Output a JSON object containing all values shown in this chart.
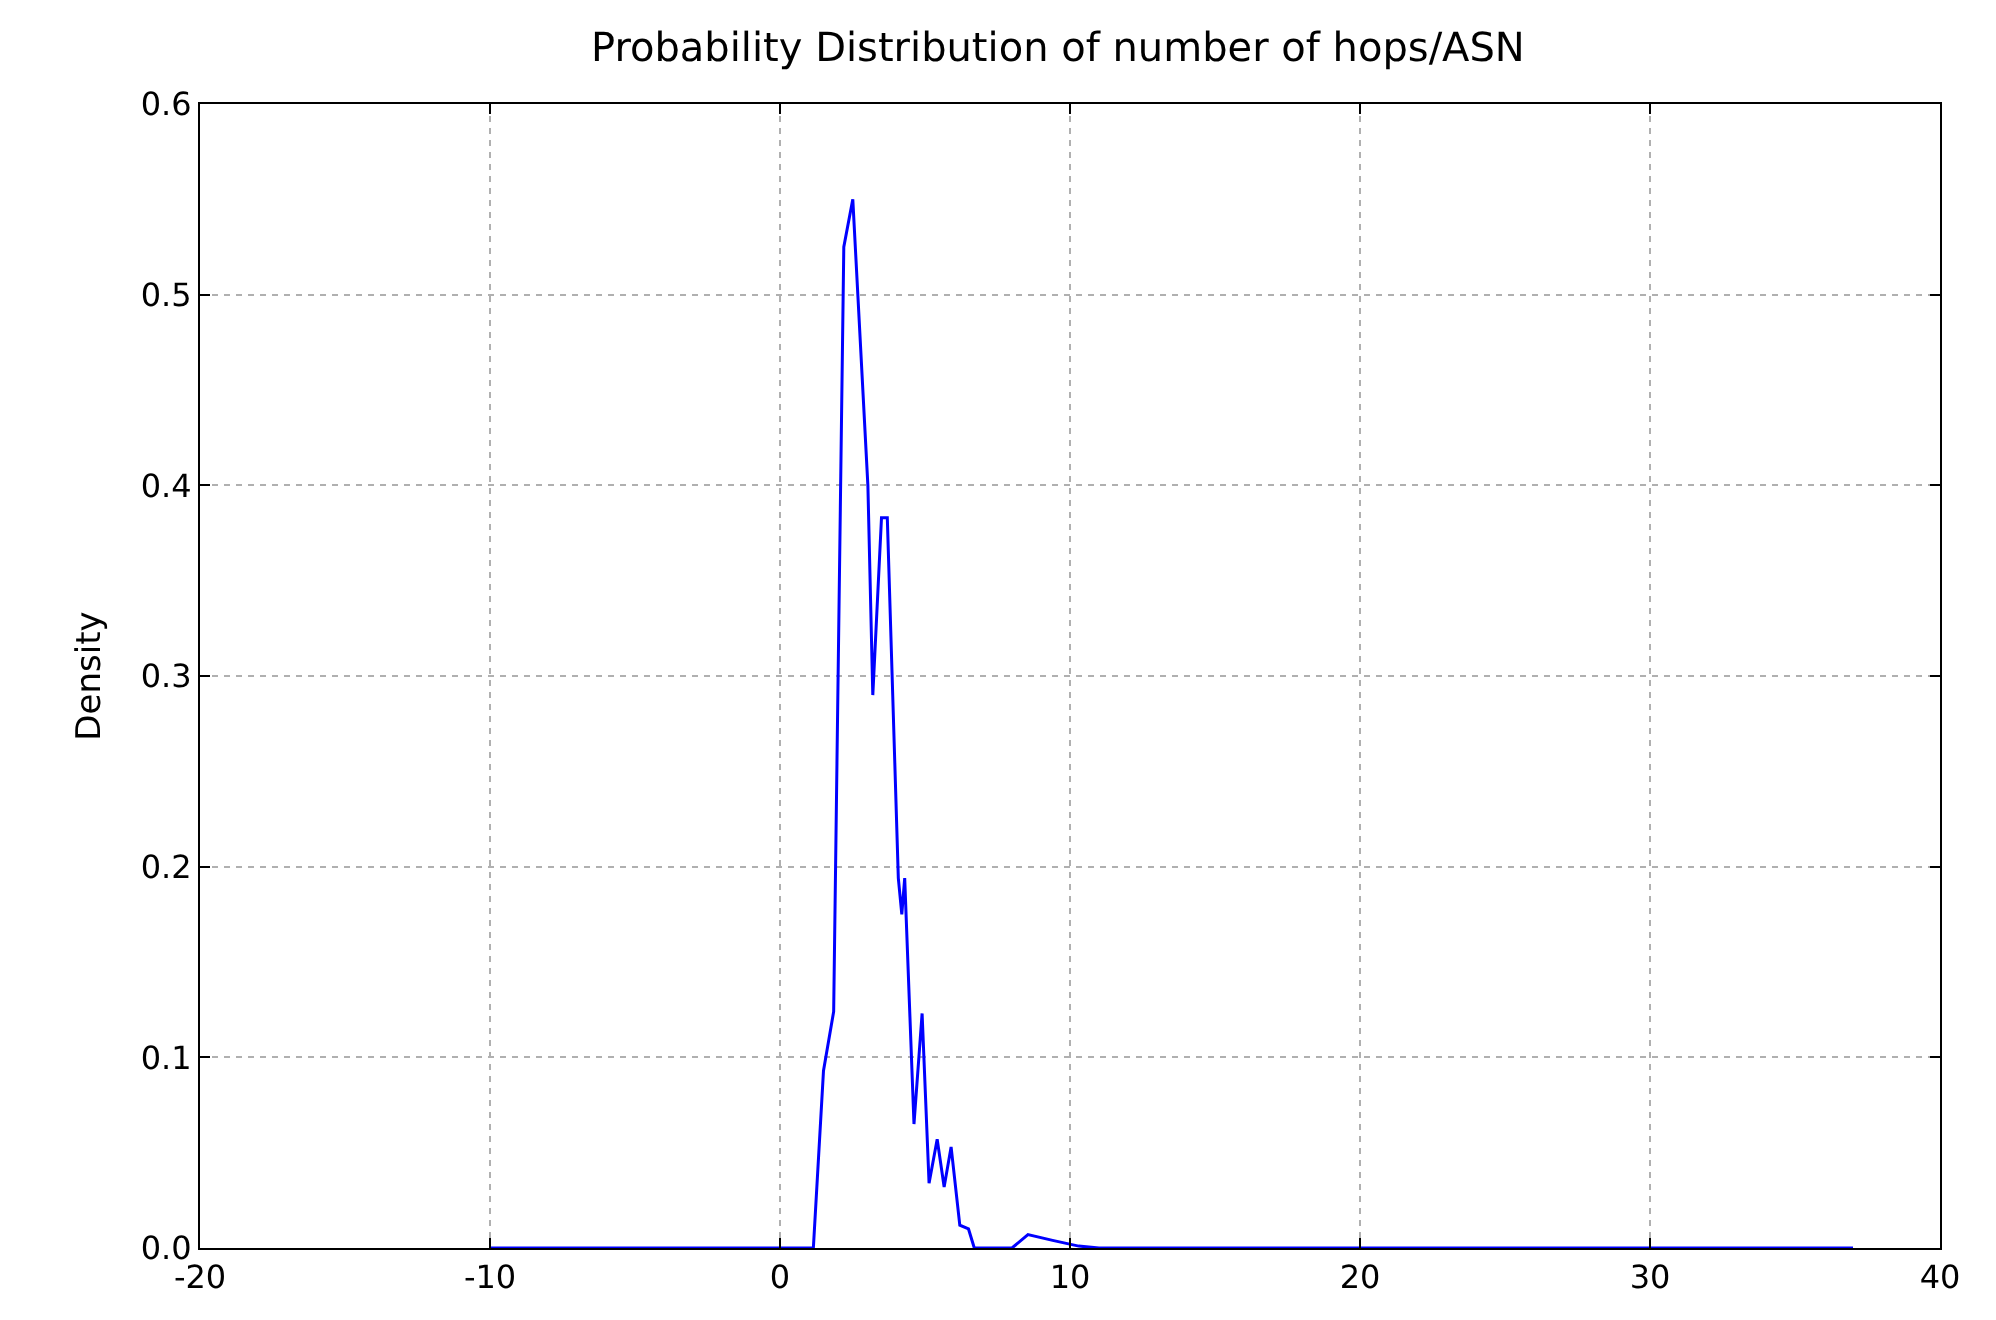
{
  "chart_data": {
    "type": "line",
    "title": "Probability Distribution of number of hops/ASN",
    "ylabel": "Density",
    "x": [
      -10,
      0,
      1.15,
      1.5,
      1.85,
      2.2,
      2.51,
      3.03,
      3.2,
      3.5,
      3.7,
      4.08,
      4.2,
      4.3,
      4.62,
      4.9,
      5.14,
      5.42,
      5.66,
      5.9,
      6.2,
      6.5,
      6.7,
      8.0,
      8.55,
      9.4,
      10.3,
      11,
      20,
      30,
      37
    ],
    "series": [
      {
        "color": "#0000ff",
        "values": [
          0,
          0,
          0,
          0.093,
          0.124,
          0.525,
          0.55,
          0.4,
          0.29,
          0.383,
          0.383,
          0.194,
          0.175,
          0.194,
          0.065,
          0.123,
          0.034,
          0.057,
          0.032,
          0.053,
          0.012,
          0.01,
          0,
          0,
          0.007,
          0.004,
          0.001,
          0,
          0,
          0,
          0
        ]
      }
    ],
    "xlim": [
      -20,
      40
    ],
    "xticks": [
      -20,
      -10,
      0,
      10,
      20,
      30,
      40
    ],
    "ylim": [
      0,
      0.6
    ],
    "yticks": [
      {
        "value": 0,
        "label": "0.0"
      },
      {
        "value": 0.1,
        "label": "0.1"
      },
      {
        "value": 0.2,
        "label": "0.2"
      },
      {
        "value": 0.3,
        "label": "0.3"
      },
      {
        "value": 0.4,
        "label": "0.4"
      },
      {
        "value": 0.5,
        "label": "0.5"
      },
      {
        "value": 0.6,
        "label": "0.6"
      }
    ],
    "grid": true,
    "marker": "none",
    "line_style": "solid"
  }
}
